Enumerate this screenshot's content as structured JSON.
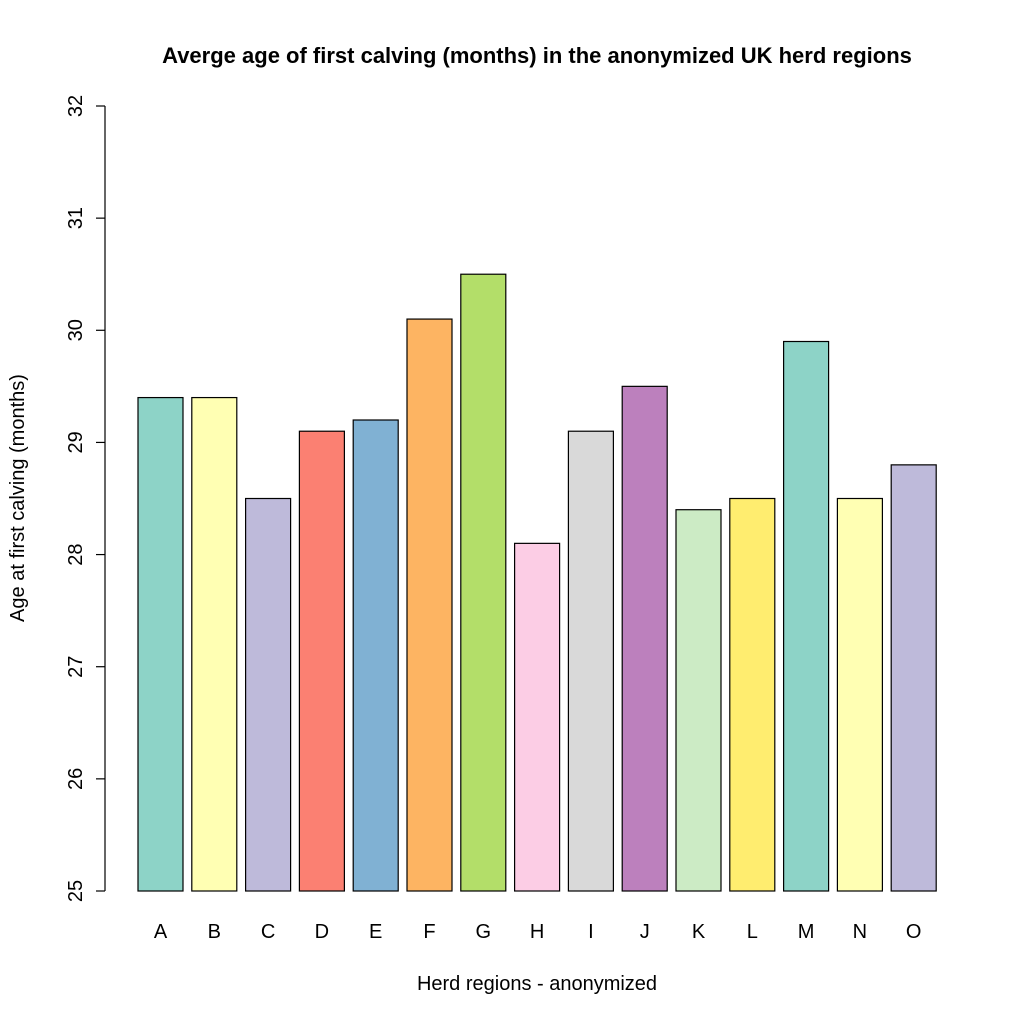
{
  "chart_data": {
    "type": "bar",
    "title": "Averge age of first calving (months) in the anonymized UK herd regions",
    "xlabel": "Herd regions - anonymized",
    "ylabel": "Age at first calving (months)",
    "ylim": [
      25,
      32
    ],
    "yticks": [
      "25",
      "26",
      "27",
      "28",
      "29",
      "30",
      "31",
      "32"
    ],
    "grid": false,
    "categories": [
      "A",
      "B",
      "C",
      "D",
      "E",
      "F",
      "G",
      "H",
      "I",
      "J",
      "K",
      "L",
      "M",
      "N",
      "O"
    ],
    "values": [
      29.4,
      29.4,
      28.5,
      29.1,
      29.2,
      30.1,
      30.5,
      28.1,
      29.1,
      29.5,
      28.4,
      28.5,
      29.9,
      28.5,
      28.8
    ],
    "colors": [
      "#8DD3C7",
      "#FFFFB3",
      "#BEBADA",
      "#FB8072",
      "#80B1D3",
      "#FDB462",
      "#B3DE69",
      "#FCCDE5",
      "#D9D9D9",
      "#BC80BD",
      "#CCEBC5",
      "#FFED6F",
      "#8DD3C7",
      "#FFFFB3",
      "#BEBADA"
    ]
  }
}
